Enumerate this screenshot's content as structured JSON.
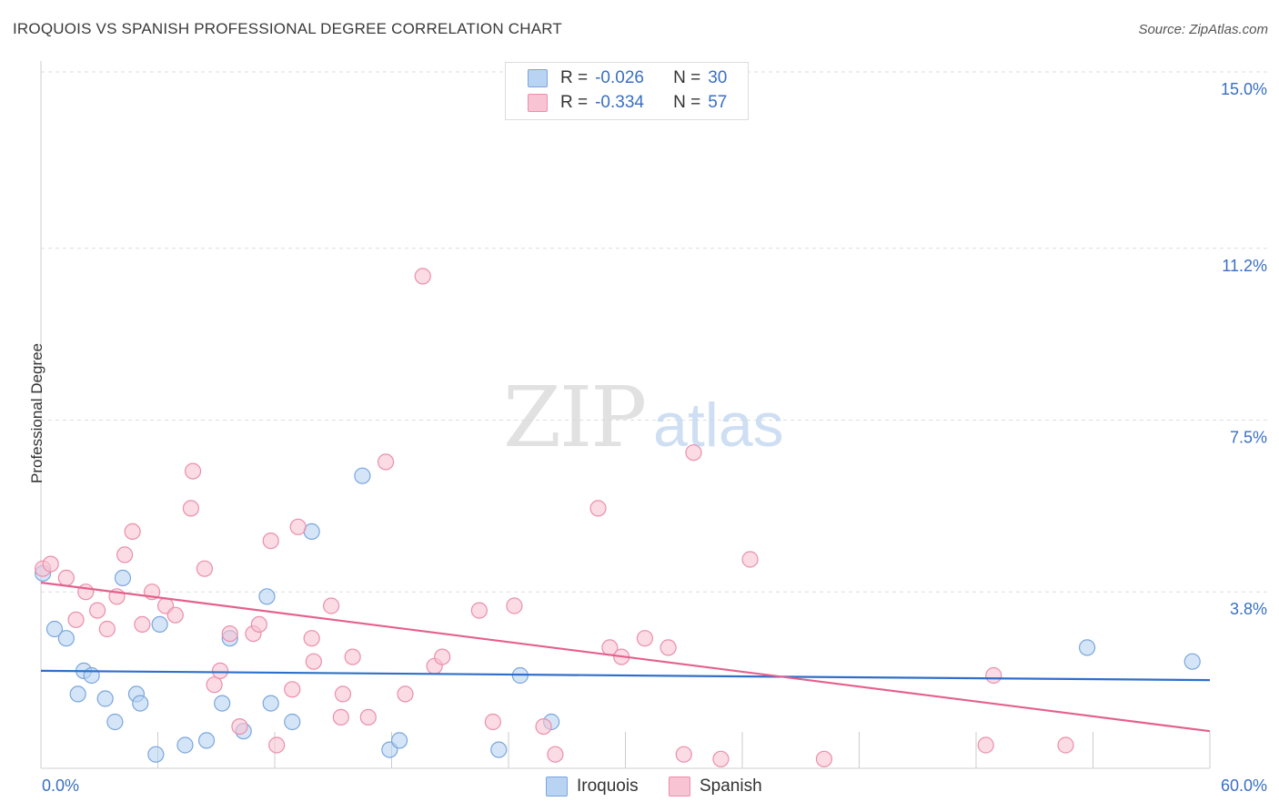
{
  "title": "IROQUOIS VS SPANISH PROFESSIONAL DEGREE CORRELATION CHART",
  "source": "Source: ZipAtlas.com",
  "watermark": {
    "zip": "ZIP",
    "atlas": "atlas"
  },
  "legend": {
    "rows": [
      {
        "r_label": "R =",
        "r_value": "-0.026",
        "n_label": "N =",
        "n_value": "30"
      },
      {
        "r_label": "R =",
        "r_value": "-0.334",
        "n_label": "N =",
        "n_value": "57"
      }
    ]
  },
  "colors": {
    "iroquois_fill": "#b9d3f3",
    "iroquois_stroke": "#7aa6dc",
    "iroquois_line": "#2f6fca",
    "spanish_fill": "#f8c3d2",
    "spanish_stroke": "#eb8fab",
    "spanish_line": "#e4608e",
    "tick_text": "#3a6fc4",
    "grid": "#dddddd"
  },
  "chart_data": {
    "type": "scatter",
    "xlabel": "",
    "ylabel": "Professional Degree",
    "xlim": [
      0,
      60
    ],
    "ylim": [
      0,
      15
    ],
    "x_tick_labels": [
      "0.0%",
      "60.0%"
    ],
    "y_ticks": [
      3.8,
      7.5,
      11.2,
      15.0
    ],
    "y_tick_labels": [
      "3.8%",
      "7.5%",
      "11.2%",
      "15.0%"
    ],
    "grid": true,
    "legend": [
      "Iroquois",
      "Spanish"
    ],
    "series": [
      {
        "name": "Iroquois",
        "points": [
          [
            0.1,
            4.2
          ],
          [
            0.7,
            3.0
          ],
          [
            1.3,
            2.8
          ],
          [
            1.9,
            1.6
          ],
          [
            2.2,
            2.1
          ],
          [
            2.6,
            2.0
          ],
          [
            3.3,
            1.5
          ],
          [
            3.8,
            1.0
          ],
          [
            4.2,
            4.1
          ],
          [
            4.9,
            1.6
          ],
          [
            5.1,
            1.4
          ],
          [
            5.9,
            0.3
          ],
          [
            6.1,
            3.1
          ],
          [
            7.4,
            0.5
          ],
          [
            8.5,
            0.6
          ],
          [
            9.3,
            1.4
          ],
          [
            9.7,
            2.8
          ],
          [
            10.4,
            0.8
          ],
          [
            11.6,
            3.7
          ],
          [
            11.8,
            1.4
          ],
          [
            12.9,
            1.0
          ],
          [
            13.9,
            5.1
          ],
          [
            16.5,
            6.3
          ],
          [
            17.9,
            0.4
          ],
          [
            18.4,
            0.6
          ],
          [
            23.5,
            0.4
          ],
          [
            24.6,
            2.0
          ],
          [
            26.2,
            1.0
          ],
          [
            53.7,
            2.6
          ],
          [
            59.1,
            2.3
          ]
        ],
        "trend": [
          [
            0,
            2.1
          ],
          [
            60,
            1.9
          ]
        ]
      },
      {
        "name": "Spanish",
        "points": [
          [
            0.1,
            4.3
          ],
          [
            0.5,
            4.4
          ],
          [
            1.3,
            4.1
          ],
          [
            1.8,
            3.2
          ],
          [
            2.3,
            3.8
          ],
          [
            2.9,
            3.4
          ],
          [
            3.4,
            3.0
          ],
          [
            3.9,
            3.7
          ],
          [
            4.3,
            4.6
          ],
          [
            4.7,
            5.1
          ],
          [
            5.2,
            3.1
          ],
          [
            5.7,
            3.8
          ],
          [
            6.4,
            3.5
          ],
          [
            6.9,
            3.3
          ],
          [
            7.7,
            5.6
          ],
          [
            7.8,
            6.4
          ],
          [
            8.4,
            4.3
          ],
          [
            8.9,
            1.8
          ],
          [
            9.2,
            2.1
          ],
          [
            9.7,
            2.9
          ],
          [
            10.2,
            0.9
          ],
          [
            10.9,
            2.9
          ],
          [
            11.2,
            3.1
          ],
          [
            11.8,
            4.9
          ],
          [
            12.1,
            0.5
          ],
          [
            12.9,
            1.7
          ],
          [
            13.2,
            5.2
          ],
          [
            13.9,
            2.8
          ],
          [
            14.0,
            2.3
          ],
          [
            14.9,
            3.5
          ],
          [
            15.4,
            1.1
          ],
          [
            15.5,
            1.6
          ],
          [
            16.0,
            2.4
          ],
          [
            16.8,
            1.1
          ],
          [
            17.7,
            6.6
          ],
          [
            18.7,
            1.6
          ],
          [
            19.6,
            10.6
          ],
          [
            20.2,
            2.2
          ],
          [
            20.6,
            2.4
          ],
          [
            22.5,
            3.4
          ],
          [
            23.2,
            1.0
          ],
          [
            24.3,
            3.5
          ],
          [
            25.8,
            0.9
          ],
          [
            26.4,
            0.3
          ],
          [
            28.6,
            5.6
          ],
          [
            29.2,
            2.6
          ],
          [
            29.8,
            2.4
          ],
          [
            31.0,
            2.8
          ],
          [
            32.2,
            2.6
          ],
          [
            33.0,
            0.3
          ],
          [
            33.5,
            6.8
          ],
          [
            34.9,
            0.2
          ],
          [
            36.4,
            4.5
          ],
          [
            40.2,
            0.2
          ],
          [
            48.5,
            0.5
          ],
          [
            48.9,
            2.0
          ],
          [
            52.6,
            0.5
          ]
        ],
        "trend": [
          [
            0,
            4.0
          ],
          [
            60,
            0.8
          ]
        ]
      }
    ]
  }
}
